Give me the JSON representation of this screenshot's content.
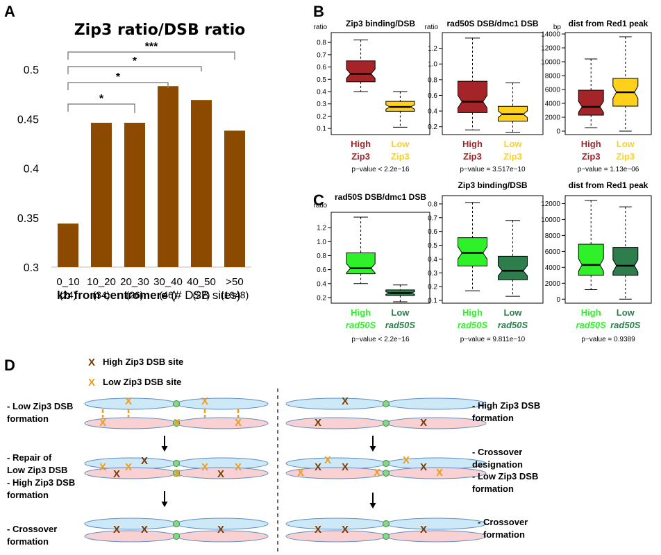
{
  "colors": {
    "bar": "#8B4A00",
    "high_zip3": "#A52428",
    "low_zip3": "#FFD11A",
    "high_rad50s": "#2EF12A",
    "low_rad50s": "#2E7D4C",
    "chrom_blue": "#CDE8F6",
    "chrom_pink": "#F9D1D2",
    "chrom_edge": "#5A8CC8",
    "centromere": "#86D68A",
    "x_high": "#7A3A00",
    "x_low": "#F29A1A"
  },
  "panel_labels": {
    "a": "A",
    "b": "B",
    "c": "C",
    "d": "D"
  },
  "chart_data": [
    {
      "type": "bar",
      "title": "Zip3 ratio/DSB ratio",
      "categories": [
        "0_10",
        "10_20",
        "20_30",
        "30_40",
        "40_50",
        ">50"
      ],
      "counts": [
        "(24)",
        "(34)",
        "(26)",
        "(46)",
        "(27)",
        "(1048)"
      ],
      "values": [
        0.344,
        0.446,
        0.446,
        0.483,
        0.469,
        0.438
      ],
      "ylim": [
        0.3,
        0.5
      ],
      "yticks": [
        "0.3",
        "0.35",
        "0.4",
        "0.45",
        "0.5"
      ],
      "xlabel_bold": "kb from centromere",
      "xlabel_rest": " (# DSB sites)",
      "significance": [
        {
          "from": "0_10",
          "to": "20_30",
          "label": "*"
        },
        {
          "from": "0_10",
          "to": "30_40",
          "label": "*"
        },
        {
          "from": "0_10",
          "to": "40_50",
          "label": "*"
        },
        {
          "from": "0_10",
          "to": ">50",
          "label": "***"
        }
      ]
    },
    {
      "type": "box",
      "panel": "B",
      "title": "Zip3 binding/DSB",
      "unit": "ratio",
      "ylim": [
        0.05,
        0.88
      ],
      "yticks": [
        "0.1",
        "0.2",
        "0.3",
        "0.4",
        "0.5",
        "0.6",
        "0.7",
        "0.8"
      ],
      "groups": [
        {
          "name_line1": "High",
          "name_line2": "Zip3",
          "min": 0.4,
          "q1": 0.48,
          "median": 0.545,
          "q3": 0.65,
          "max": 0.82
        },
        {
          "name_line1": "Low",
          "name_line2": "Zip3",
          "min": 0.11,
          "q1": 0.24,
          "median": 0.275,
          "q3": 0.32,
          "max": 0.4
        }
      ],
      "p_value": "p−value < 2.2e−16"
    },
    {
      "type": "box",
      "panel": "B",
      "title": "rad50S DSB/dmc1 DSB",
      "unit": "ratio",
      "ylim": [
        0.1,
        1.4
      ],
      "yticks": [
        "0.2",
        "0.4",
        "0.6",
        "0.8",
        "1.0",
        "1.2"
      ],
      "groups": [
        {
          "name_line1": "High",
          "name_line2": "Zip3",
          "min": 0.16,
          "q1": 0.38,
          "median": 0.52,
          "q3": 0.78,
          "max": 1.33
        },
        {
          "name_line1": "Low",
          "name_line2": "Zip3",
          "min": 0.13,
          "q1": 0.27,
          "median": 0.36,
          "q3": 0.46,
          "max": 0.76
        }
      ],
      "p_value": "p−value = 3.517e−10"
    },
    {
      "type": "box",
      "panel": "B",
      "title": "dist from Red1 peak",
      "unit": "bp",
      "ylim": [
        -500,
        14200
      ],
      "yticks": [
        "0",
        "2000",
        "4000",
        "6000",
        "8000",
        "10000",
        "12000",
        "14000"
      ],
      "groups": [
        {
          "name_line1": "High",
          "name_line2": "Zip3",
          "min": 500,
          "q1": 2300,
          "median": 3500,
          "q3": 5900,
          "max": 10400
        },
        {
          "name_line1": "Low",
          "name_line2": "Zip3",
          "min": 0,
          "q1": 3600,
          "median": 5600,
          "q3": 7600,
          "max": 13600
        }
      ],
      "p_value": "p−value = 1.13e−06"
    },
    {
      "type": "box",
      "panel": "C",
      "title": "rad50S DSB/dmc1 DSB",
      "unit": "ratio",
      "ylim": [
        0.12,
        1.42
      ],
      "yticks": [
        "0.2",
        "0.4",
        "0.6",
        "0.8",
        "1.0",
        "1.2"
      ],
      "groups": [
        {
          "name_line1": "High",
          "name_line2": "rad50S",
          "min": 0.4,
          "q1": 0.54,
          "median": 0.62,
          "q3": 0.84,
          "max": 1.35
        },
        {
          "name_line1": "Low",
          "name_line2": "rad50S",
          "min": 0.14,
          "q1": 0.23,
          "median": 0.265,
          "q3": 0.31,
          "max": 0.38
        }
      ],
      "p_value": "p−value < 2.2e−16"
    },
    {
      "type": "box",
      "panel": "C",
      "title": "Zip3 binding/DSB",
      "unit": "",
      "ylim": [
        0.08,
        0.86
      ],
      "yticks": [
        "0.1",
        "0.2",
        "0.3",
        "0.4",
        "0.5",
        "0.6",
        "0.7",
        "0.8"
      ],
      "groups": [
        {
          "name_line1": "High",
          "name_line2": "rad50S",
          "min": 0.17,
          "q1": 0.35,
          "median": 0.445,
          "q3": 0.555,
          "max": 0.81
        },
        {
          "name_line1": "Low",
          "name_line2": "rad50S",
          "min": 0.13,
          "q1": 0.25,
          "median": 0.315,
          "q3": 0.42,
          "max": 0.68
        }
      ],
      "p_value": "p−value = 9.811e−10"
    },
    {
      "type": "box",
      "panel": "C",
      "title": "dist from Red1 peak",
      "unit": "",
      "ylim": [
        -500,
        13000
      ],
      "yticks": [
        "0",
        "2000",
        "4000",
        "6000",
        "8000",
        "10000",
        "12000"
      ],
      "groups": [
        {
          "name_line1": "High",
          "name_line2": "rad50S",
          "min": 1200,
          "q1": 3000,
          "median": 4300,
          "q3": 6900,
          "max": 12400
        },
        {
          "name_line1": "Low",
          "name_line2": "rad50S",
          "min": 0,
          "q1": 3000,
          "median": 4200,
          "q3": 6500,
          "max": 11600
        }
      ],
      "p_value": "p−value = 0.9389"
    }
  ],
  "diagram": {
    "legend_high": "High Zip3 DSB site",
    "legend_low": "Low Zip3 DSB site",
    "mark": "X",
    "left_steps": [
      [
        "- Low Zip3 DSB",
        "formation"
      ],
      [
        "- Repair of",
        "Low Zip3 DSB"
      ],
      [
        "- High Zip3 DSB",
        "formation"
      ],
      [
        "- Crossover",
        "formation"
      ]
    ],
    "right_steps": [
      [
        "- High Zip3 DSB",
        "formation"
      ],
      [
        "- Crossover",
        "designation"
      ],
      [
        "- Low Zip3 DSB",
        "formation"
      ],
      [
        "- Crossover",
        "formation"
      ]
    ]
  }
}
